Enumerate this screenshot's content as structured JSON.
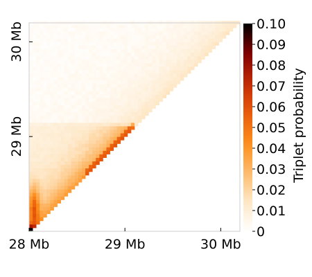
{
  "chart_data": {
    "type": "heatmap",
    "title": "",
    "xlabel": "",
    "ylabel": "",
    "colorbar_label": "Triplet probability",
    "x_range_mb": [
      28.0,
      30.2
    ],
    "y_range_mb": [
      28.0,
      30.2
    ],
    "x_ticks": [
      {
        "value": 28,
        "label": "28 Mb"
      },
      {
        "value": 29,
        "label": "29 Mb"
      },
      {
        "value": 30,
        "label": "30 Mb"
      }
    ],
    "y_ticks": [
      {
        "value": 29,
        "label": "29 Mb"
      },
      {
        "value": 30,
        "label": "30 Mb"
      }
    ],
    "colorbar_ticks": [
      {
        "value": 0.0,
        "label": "0"
      },
      {
        "value": 0.01,
        "label": "0.01"
      },
      {
        "value": 0.02,
        "label": "0.02"
      },
      {
        "value": 0.03,
        "label": "0.03"
      },
      {
        "value": 0.04,
        "label": "0.04"
      },
      {
        "value": 0.05,
        "label": "0.05"
      },
      {
        "value": 0.06,
        "label": "0.06"
      },
      {
        "value": 0.07,
        "label": "0.07"
      },
      {
        "value": 0.08,
        "label": "0.08"
      },
      {
        "value": 0.09,
        "label": "0.09"
      },
      {
        "value": 0.1,
        "label": "0.10"
      }
    ],
    "value_range": [
      0,
      0.1
    ],
    "colormap": [
      "#ffffff",
      "#fee7c6",
      "#fdb96a",
      "#fd8d1a",
      "#e85a0c",
      "#c12a06",
      "#800000",
      "#000000"
    ],
    "triangle": "upper-left",
    "notes_hot_regions_mb": [
      {
        "x": 28.05,
        "y": 28.05,
        "value": 0.08
      },
      {
        "x": 28.3,
        "y": 28.3,
        "value": 0.03
      },
      {
        "x": 29.0,
        "y": 29.0,
        "value": 0.035
      }
    ]
  }
}
